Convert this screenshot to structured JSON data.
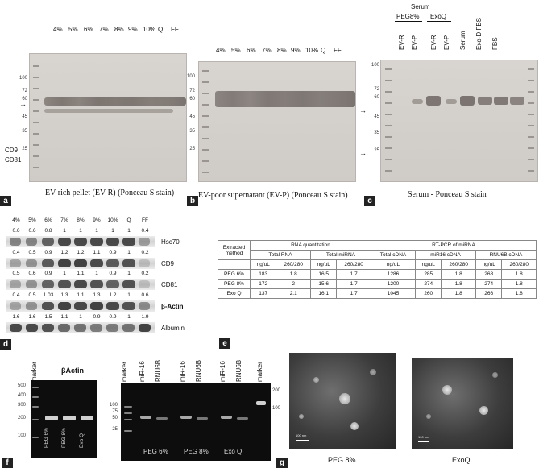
{
  "panel_a": {
    "letter": "a",
    "lanes": [
      "4%",
      "5%",
      "6%",
      "7%",
      "8%",
      "9%",
      "10%",
      "Q",
      "FF"
    ],
    "markers": [
      "100",
      "72",
      "60",
      "45",
      "35",
      "25"
    ],
    "side_labels": [
      "CD9",
      "CD81"
    ],
    "caption": "EV-rich pellet (EV-R)  (Ponceau S stain)"
  },
  "panel_b": {
    "letter": "b",
    "lanes": [
      "4%",
      "5%",
      "6%",
      "7%",
      "8%",
      "9%",
      "10%",
      "Q",
      "FF"
    ],
    "markers": [
      "100",
      "72",
      "60",
      "45",
      "35",
      "25"
    ],
    "caption": "EV-poor supernatant (EV-P)  (Ponceau S stain)"
  },
  "panel_c": {
    "letter": "c",
    "header": "Serum",
    "groups": [
      "PEG8%",
      "ExoQ"
    ],
    "lanes": [
      "EV-R",
      "EV-P",
      "EV-R",
      "EV-P",
      "Serum",
      "Exo-D FBS",
      "FBS"
    ],
    "markers": [
      "100",
      "72",
      "60",
      "45",
      "35",
      "25"
    ],
    "caption": "Serum - Ponceau S stain"
  },
  "panel_d": {
    "letter": "d",
    "lanes": [
      "4%",
      "5%",
      "6%",
      "7%",
      "8%",
      "9%",
      "10%",
      "Q",
      "FF"
    ],
    "rows": [
      {
        "name": "Hsc70",
        "values": [
          "0.6",
          "0.6",
          "0.8",
          "1",
          "1",
          "1",
          "1",
          "1",
          "0.4"
        ]
      },
      {
        "name": "CD9",
        "values": [
          "0.4",
          "0.5",
          "0.9",
          "1.2",
          "1.2",
          "1.1",
          "0.9",
          "1",
          "0.2"
        ]
      },
      {
        "name": "CD81",
        "values": [
          "0.5",
          "0.6",
          "0.9",
          "1",
          "1.1",
          "1",
          "0.9",
          "1",
          "0.2"
        ]
      },
      {
        "name": "β-Actin",
        "values": [
          "0.4",
          "0.5",
          "1.03",
          "1.3",
          "1.1",
          "1.3",
          "1.2",
          "1",
          "0.6"
        ]
      },
      {
        "name": "Albumin",
        "values": [
          "1.6",
          "1.6",
          "1.5",
          "1.1",
          "1",
          "0.9",
          "0.9",
          "1",
          "1.9"
        ]
      }
    ]
  },
  "panel_e": {
    "letter": "e",
    "head_rna": "RNA quantitation",
    "head_rt": "RT-PCR of miRNA",
    "col_method": "Extracted method",
    "col_total_rna": "Total RNA",
    "col_total_mirna": "Total miRNA",
    "col_total_cdna": "Total cDNA",
    "col_mir16": "miR16 cDNA",
    "col_rnu6b": "RNU6B cDNA",
    "units": [
      "ng/uL",
      "260/280",
      "ng/uL",
      "260/280",
      "ng/uL",
      "ng/uL",
      "260/280",
      "ng/uL",
      "260/280"
    ],
    "rows": [
      {
        "method": "PEG 6%",
        "vals": [
          "183",
          "1.8",
          "16.5",
          "1.7",
          "1286",
          "285",
          "1.8",
          "268",
          "1.8"
        ]
      },
      {
        "method": "PEG 8%",
        "vals": [
          "172",
          "2",
          "15.6",
          "1.7",
          "1200",
          "274",
          "1.8",
          "274",
          "1.8"
        ]
      },
      {
        "method": "Exo Q",
        "vals": [
          "137",
          "2.1",
          "16.1",
          "1.7",
          "1045",
          "260",
          "1.8",
          "266",
          "1.8"
        ]
      }
    ]
  },
  "panel_f": {
    "letter": "f",
    "title": "βActin",
    "marker_label": "marker",
    "markers_left": [
      "500",
      "400",
      "300",
      "200",
      "100"
    ],
    "lanes_left": [
      "PEG 6%",
      "PEG 8%",
      "Exo Q"
    ],
    "lanes_right": [
      "marker",
      "miR-16",
      "RNU6B",
      "miR-16",
      "RNU6B",
      "miR-16",
      "RNU6B",
      "marker"
    ],
    "markers_mid": [
      "100",
      "75",
      "50",
      "25"
    ],
    "markers_right": [
      "200",
      "100"
    ],
    "groups_right": [
      "PEG 6%",
      "PEG 8%",
      "Exo Q"
    ]
  },
  "panel_g": {
    "letter": "g",
    "scale_left": "100 nm",
    "scale_right": "100 nm",
    "caption_left": "PEG 8%",
    "caption_right": "ExoQ"
  }
}
